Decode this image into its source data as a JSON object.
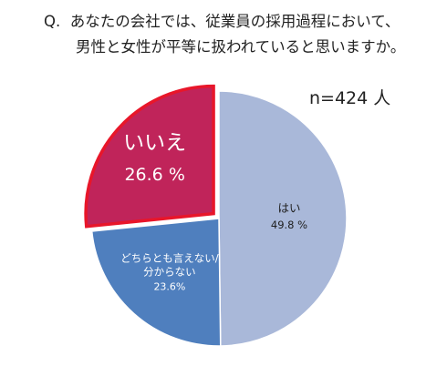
{
  "question": {
    "prefix": "Q.",
    "line1": "あなたの会社では、従業員の採用過程において、",
    "line2": "男性と女性が平等に扱われていると思いますか。"
  },
  "sample_size": "n=424 人",
  "chart_data": {
    "type": "pie",
    "slices": [
      {
        "label": "はい",
        "value": 49.8,
        "value_label": "49.8 %",
        "color": "#a9b8d9",
        "exploded": false
      },
      {
        "label": "どちらとも言えない/\n分からない",
        "value": 23.6,
        "value_label": "23.6%",
        "color": "#4f7fbe",
        "exploded": false
      },
      {
        "label": "いいえ",
        "value": 26.6,
        "value_label": "26.6 %",
        "color": "#c0245a",
        "exploded": true,
        "outline": "#e8162a"
      }
    ],
    "start": "12 o'clock",
    "direction": "clockwise"
  }
}
